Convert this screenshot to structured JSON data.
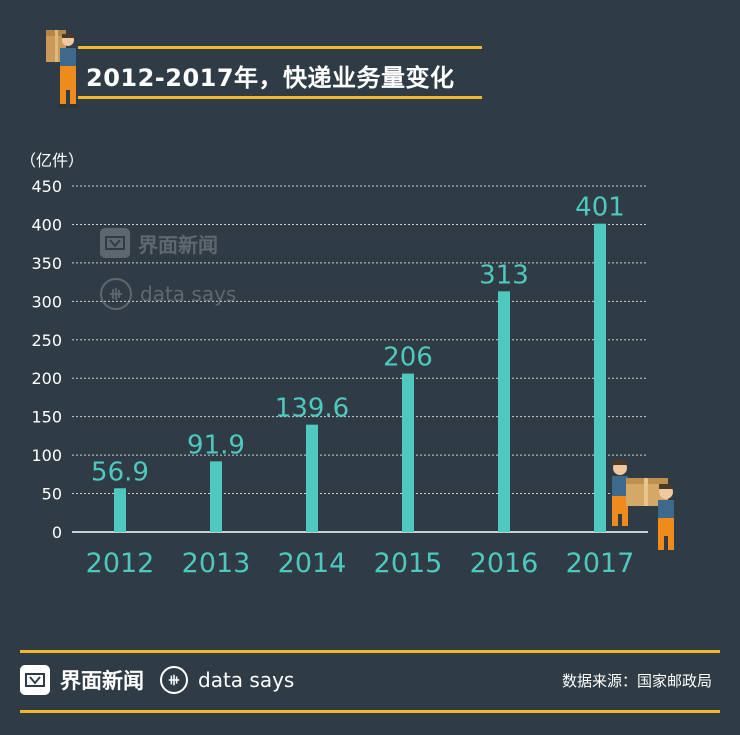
{
  "header": {
    "title": "2012-2017年，快递业务量变化",
    "unit": "（亿件）"
  },
  "watermark": {
    "brand": "界面新闻",
    "datasays": "data says"
  },
  "footer": {
    "brand": "界面新闻",
    "datasays": "data says",
    "source": "数据来源：国家邮政局"
  },
  "colors": {
    "background": "#2f3c46",
    "accent": "#f2b631",
    "bar": "#4fc8c0",
    "text": "#ffffff"
  },
  "icons": [
    "delivery-worker-icon",
    "delivery-workers-carrying-box-icon",
    "jiemian-logo-icon",
    "data-says-logo-icon"
  ],
  "chart_data": {
    "type": "bar",
    "title": "2012-2017年，快递业务量变化",
    "ylabel": "（亿件）",
    "xlabel": "",
    "categories": [
      "2012",
      "2013",
      "2014",
      "2015",
      "2016",
      "2017"
    ],
    "values": [
      56.9,
      91.9,
      139.6,
      206,
      313,
      401
    ],
    "value_labels": [
      "56.9",
      "91.9",
      "139.6",
      "206",
      "313",
      "401"
    ],
    "yticks": [
      0,
      50,
      100,
      150,
      200,
      250,
      300,
      350,
      400,
      450
    ],
    "ylim": [
      0,
      450
    ],
    "grid": true,
    "legend": "none"
  }
}
